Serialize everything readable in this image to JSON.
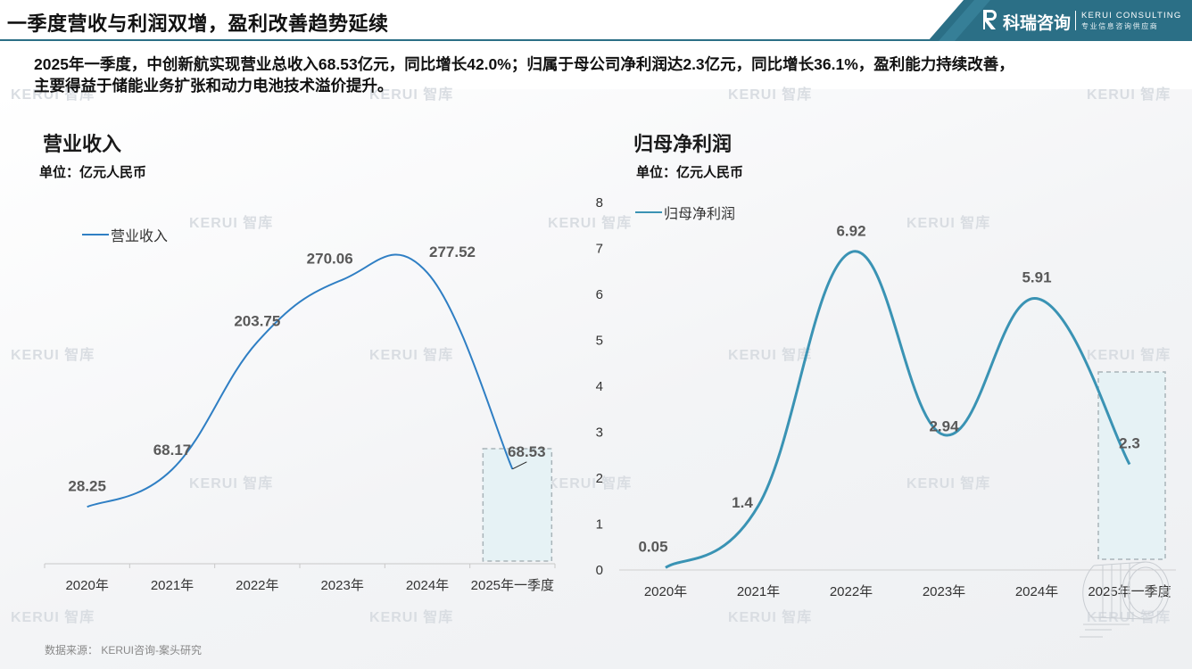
{
  "header": {
    "title": "一季度营收与利润双增，盈利改善趋势延续",
    "brand_name": "科瑞咨询",
    "brand_en": "KERUI CONSULTING",
    "brand_tagline": "专业信息咨询供应商",
    "accent_color": "#2b6f86"
  },
  "summary": {
    "line1": "2025年一季度，中创新航实现营业总收入68.53亿元，同比增长42.0%；归属于母公司净利润达2.3亿元，同比增长36.1%，盈利能力持续改善，",
    "line2": "主要得益于储能业务扩张和动力电池技术溢价提升。"
  },
  "watermark": {
    "text_en": "KERUI",
    "text_cn": "智库"
  },
  "source": "数据来源： KERUI咨询-案头研究",
  "chart_data": [
    {
      "type": "line",
      "title": "营业收入",
      "unit": "单位：亿元人民币",
      "categories": [
        "2020年",
        "2021年",
        "2022年",
        "2023年",
        "2024年",
        "2025年一季度"
      ],
      "series": [
        {
          "name": "营业收入",
          "values": [
            28.25,
            68.17,
            203.75,
            270.06,
            277.52,
            68.53
          ],
          "color": "#2f7fc4"
        }
      ],
      "data_labels": [
        "28.25",
        "68.17",
        "203.75",
        "270.06",
        "277.52",
        "68.53"
      ],
      "y_axis_visible": false,
      "grid": false,
      "legend": "top-left",
      "highlight_category": "2025年一季度"
    },
    {
      "type": "line",
      "title": "归母净利润",
      "unit": "单位：亿元人民币",
      "categories": [
        "2020年",
        "2021年",
        "2022年",
        "2023年",
        "2024年",
        "2025年一季度"
      ],
      "series": [
        {
          "name": "归母净利润",
          "values": [
            0.05,
            1.4,
            6.92,
            2.94,
            5.91,
            2.3
          ],
          "color": "#3a93b4"
        }
      ],
      "data_labels": [
        "0.05",
        "1.4",
        "6.92",
        "2.94",
        "5.91",
        "2.3"
      ],
      "y_ticks": [
        "0",
        "1",
        "2",
        "3",
        "4",
        "5",
        "6",
        "7",
        "8"
      ],
      "ylim": [
        0,
        8
      ],
      "grid": false,
      "legend": "top-left",
      "highlight_category": "2025年一季度"
    }
  ]
}
